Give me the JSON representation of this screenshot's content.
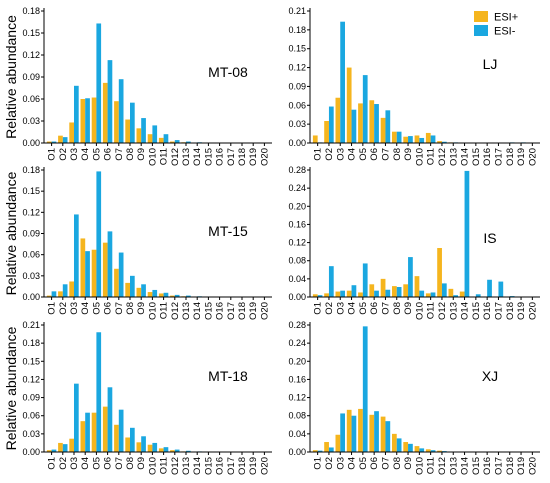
{
  "legend": {
    "placement": "top-right",
    "entries": [
      {
        "label": "ESI+",
        "color": "#F5B51E"
      },
      {
        "label": "ESI-",
        "color": "#1AA7E0"
      }
    ]
  },
  "chart_data": [
    {
      "type": "bar",
      "panel_label": "MT-08",
      "ylabel": "Relative abundance",
      "ylim": [
        0,
        0.18
      ],
      "yticks": [
        "0.00",
        "0.03",
        "0.06",
        "0.09",
        "0.12",
        "0.15",
        "0.18"
      ],
      "categories": [
        "O1",
        "O2",
        "O3",
        "O4",
        "O5",
        "O6",
        "O7",
        "O8",
        "O9",
        "O10",
        "O11",
        "O12",
        "O13",
        "O14",
        "O15",
        "O16",
        "O17",
        "O18",
        "O19",
        "O20"
      ],
      "series": [
        {
          "name": "ESI+",
          "values": [
            0.002,
            0.01,
            0.028,
            0.06,
            0.062,
            0.082,
            0.057,
            0.032,
            0.02,
            0.012,
            0.007,
            0.002,
            0.001,
            0,
            0,
            0,
            0,
            0,
            0,
            0
          ]
        },
        {
          "name": "ESI-",
          "values": [
            0.002,
            0.008,
            0.078,
            0.061,
            0.163,
            0.113,
            0.087,
            0.055,
            0.034,
            0.024,
            0.012,
            0.004,
            0.002,
            0.001,
            0,
            0,
            0,
            0,
            0,
            0
          ]
        }
      ]
    },
    {
      "type": "bar",
      "panel_label": "LJ",
      "ylabel": "",
      "ylim": [
        0,
        0.21
      ],
      "yticks": [
        "0.00",
        "0.03",
        "0.06",
        "0.09",
        "0.12",
        "0.15",
        "0.18",
        "0.21"
      ],
      "categories": [
        "O1",
        "O2",
        "O3",
        "O4",
        "O5",
        "O6",
        "O7",
        "O8",
        "O9",
        "O10",
        "O11",
        "O12",
        "O13",
        "O14",
        "O15",
        "O16",
        "O17",
        "O18",
        "O19",
        "O20"
      ],
      "series": [
        {
          "name": "ESI+",
          "values": [
            0.012,
            0.035,
            0.072,
            0.12,
            0.063,
            0.068,
            0.04,
            0.018,
            0.01,
            0.012,
            0.016,
            0.003,
            0.001,
            0,
            0,
            0,
            0,
            0,
            0,
            0
          ]
        },
        {
          "name": "ESI-",
          "values": [
            0.001,
            0.058,
            0.193,
            0.053,
            0.108,
            0.062,
            0.052,
            0.018,
            0.011,
            0.008,
            0.012,
            0.002,
            0.001,
            0,
            0,
            0,
            0,
            0.001,
            0.001,
            0
          ]
        }
      ]
    },
    {
      "type": "bar",
      "panel_label": "MT-15",
      "ylabel": "Relative abundance",
      "ylim": [
        0,
        0.18
      ],
      "yticks": [
        "0.00",
        "0.03",
        "0.06",
        "0.09",
        "0.12",
        "0.15",
        "0.18"
      ],
      "categories": [
        "O1",
        "O2",
        "O3",
        "O4",
        "O5",
        "O6",
        "O7",
        "O8",
        "O9",
        "O10",
        "O11",
        "O12",
        "O13",
        "O14",
        "O15",
        "O16",
        "O17",
        "O18",
        "O19",
        "O20"
      ],
      "series": [
        {
          "name": "ESI+",
          "values": [
            0.002,
            0.008,
            0.022,
            0.083,
            0.067,
            0.077,
            0.04,
            0.02,
            0.013,
            0.007,
            0.005,
            0.002,
            0.001,
            0,
            0,
            0,
            0,
            0,
            0,
            0
          ]
        },
        {
          "name": "ESI-",
          "values": [
            0.008,
            0.018,
            0.117,
            0.065,
            0.178,
            0.093,
            0.063,
            0.03,
            0.018,
            0.01,
            0.006,
            0.003,
            0.002,
            0.001,
            0,
            0,
            0,
            0,
            0,
            0
          ]
        }
      ]
    },
    {
      "type": "bar",
      "panel_label": "IS",
      "ylabel": "",
      "ylim": [
        0,
        0.28
      ],
      "yticks": [
        "0.00",
        "0.04",
        "0.08",
        "0.12",
        "0.16",
        "0.20",
        "0.24",
        "0.28"
      ],
      "categories": [
        "O1",
        "O2",
        "O3",
        "O4",
        "O5",
        "O6",
        "O7",
        "O8",
        "O9",
        "O10",
        "O11",
        "O12",
        "O13",
        "O14",
        "O15",
        "O16",
        "O17",
        "O18",
        "O19",
        "O20"
      ],
      "series": [
        {
          "name": "ESI+",
          "values": [
            0.006,
            0.008,
            0.012,
            0.014,
            0.01,
            0.028,
            0.04,
            0.024,
            0.028,
            0.046,
            0.008,
            0.108,
            0.018,
            0.012,
            0,
            0,
            0,
            0,
            0,
            0
          ]
        },
        {
          "name": "ESI-",
          "values": [
            0.004,
            0.068,
            0.014,
            0.026,
            0.074,
            0.014,
            0.016,
            0.022,
            0.088,
            0.014,
            0.01,
            0.03,
            0.004,
            0.278,
            0.006,
            0.038,
            0.034,
            0.002,
            0.001,
            0
          ]
        }
      ]
    },
    {
      "type": "bar",
      "panel_label": "MT-18",
      "ylabel": "Relative abundance",
      "ylim": [
        0,
        0.21
      ],
      "yticks": [
        "0.00",
        "0.03",
        "0.06",
        "0.09",
        "0.12",
        "0.15",
        "0.18",
        "0.21"
      ],
      "categories": [
        "O1",
        "O2",
        "O3",
        "O4",
        "O5",
        "O6",
        "O7",
        "O8",
        "O9",
        "O10",
        "O11",
        "O12",
        "O13",
        "O14",
        "O15",
        "O16",
        "O17",
        "O18",
        "O19",
        "O20"
      ],
      "series": [
        {
          "name": "ESI+",
          "values": [
            0.003,
            0.015,
            0.022,
            0.051,
            0.065,
            0.075,
            0.045,
            0.024,
            0.016,
            0.012,
            0.006,
            0.003,
            0.001,
            0,
            0,
            0,
            0,
            0,
            0,
            0
          ]
        },
        {
          "name": "ESI-",
          "values": [
            0.004,
            0.013,
            0.113,
            0.065,
            0.198,
            0.107,
            0.07,
            0.04,
            0.026,
            0.015,
            0.008,
            0.004,
            0.002,
            0.001,
            0,
            0,
            0,
            0,
            0,
            0
          ]
        }
      ]
    },
    {
      "type": "bar",
      "panel_label": "XJ",
      "ylabel": "",
      "ylim": [
        0,
        0.28
      ],
      "yticks": [
        "0.00",
        "0.04",
        "0.08",
        "0.12",
        "0.16",
        "0.20",
        "0.24",
        "0.28"
      ],
      "categories": [
        "O1",
        "O2",
        "O3",
        "O4",
        "O5",
        "O6",
        "O7",
        "O8",
        "O9",
        "O10",
        "O11",
        "O12",
        "O13",
        "O14",
        "O15",
        "O16",
        "O17",
        "O18",
        "O19",
        "O20"
      ],
      "series": [
        {
          "name": "ESI+",
          "values": [
            0.004,
            0.022,
            0.038,
            0.093,
            0.095,
            0.082,
            0.078,
            0.04,
            0.022,
            0.013,
            0.006,
            0.003,
            0.001,
            0,
            0,
            0,
            0,
            0,
            0,
            0
          ]
        },
        {
          "name": "ESI-",
          "values": [
            0.003,
            0.01,
            0.085,
            0.08,
            0.277,
            0.09,
            0.068,
            0.03,
            0.018,
            0.008,
            0.004,
            0.002,
            0.001,
            0,
            0,
            0,
            0,
            0,
            0,
            0
          ]
        }
      ]
    }
  ]
}
